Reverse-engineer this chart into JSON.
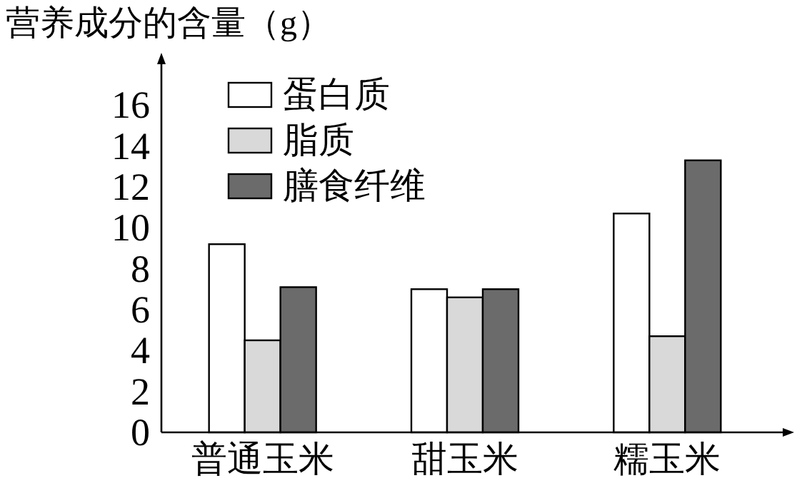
{
  "chart_data": {
    "type": "bar",
    "ylabel": "营养成分的含量（g）",
    "categories": [
      "普通玉米",
      "甜玉米",
      "糯玉米"
    ],
    "series": [
      {
        "name": "蛋白质",
        "color": "#ffffff",
        "values": [
          9.2,
          7.0,
          10.7
        ]
      },
      {
        "name": "脂质",
        "color": "#d9d9d9",
        "values": [
          4.5,
          6.6,
          4.7
        ]
      },
      {
        "name": "膳食纤维",
        "color": "#6b6b6b",
        "values": [
          7.1,
          7.0,
          13.3
        ]
      }
    ],
    "ylim": [
      0,
      18
    ],
    "yticks": [
      0,
      2,
      4,
      6,
      8,
      10,
      12,
      14,
      16
    ],
    "grid": false,
    "legend": "top left"
  }
}
